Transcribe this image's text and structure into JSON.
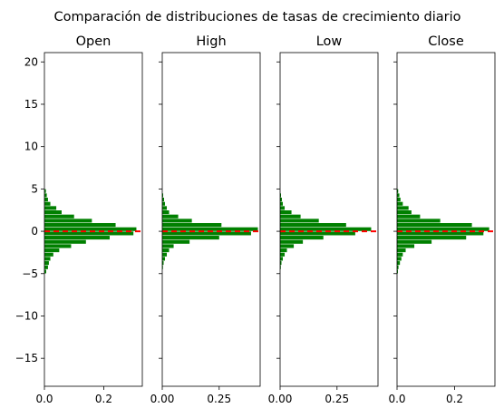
{
  "chart_data": {
    "type": "bar",
    "orientation": "horizontal-histogram",
    "suptitle": "Comparación de distribuciones de tasas de crecimiento diario",
    "ylim": [
      -18.3,
      21.1
    ],
    "y_ticks": [
      20,
      15,
      10,
      5,
      0,
      -5,
      -10,
      -15
    ],
    "y_tick_labels": [
      "20",
      "15",
      "10",
      "5",
      "0",
      "−5",
      "−10",
      "−15"
    ],
    "shared_y": true,
    "bar_color": "#008000",
    "reference_line": {
      "y": 0,
      "color": "#ff0000",
      "style": "dashed"
    },
    "panels": [
      {
        "title": "Open",
        "xlim": [
          0,
          0.33
        ],
        "x_ticks": [
          0.0,
          0.2
        ],
        "x_tick_labels": [
          "0.0",
          "0.2"
        ],
        "bins": [
          {
            "y": 4.75,
            "value": 0.005
          },
          {
            "y": 4.25,
            "value": 0.008
          },
          {
            "y": 3.75,
            "value": 0.012
          },
          {
            "y": 3.25,
            "value": 0.02
          },
          {
            "y": 2.75,
            "value": 0.04
          },
          {
            "y": 2.25,
            "value": 0.058
          },
          {
            "y": 1.75,
            "value": 0.1
          },
          {
            "y": 1.25,
            "value": 0.16
          },
          {
            "y": 0.75,
            "value": 0.24
          },
          {
            "y": 0.25,
            "value": 0.31
          },
          {
            "y": -0.25,
            "value": 0.3
          },
          {
            "y": -0.75,
            "value": 0.22
          },
          {
            "y": -1.25,
            "value": 0.14
          },
          {
            "y": -1.75,
            "value": 0.09
          },
          {
            "y": -2.25,
            "value": 0.05
          },
          {
            "y": -2.75,
            "value": 0.03
          },
          {
            "y": -3.25,
            "value": 0.02
          },
          {
            "y": -3.75,
            "value": 0.015
          },
          {
            "y": -4.25,
            "value": 0.012
          },
          {
            "y": -4.75,
            "value": 0.006
          }
        ]
      },
      {
        "title": "High",
        "xlim": [
          0,
          0.43
        ],
        "x_ticks": [
          0.0,
          0.25
        ],
        "x_tick_labels": [
          "0.00",
          "0.25"
        ],
        "bins": [
          {
            "y": 4.25,
            "value": 0.004
          },
          {
            "y": 3.75,
            "value": 0.008
          },
          {
            "y": 3.25,
            "value": 0.012
          },
          {
            "y": 2.75,
            "value": 0.02
          },
          {
            "y": 2.25,
            "value": 0.03
          },
          {
            "y": 1.75,
            "value": 0.07
          },
          {
            "y": 1.25,
            "value": 0.13
          },
          {
            "y": 0.75,
            "value": 0.26
          },
          {
            "y": 0.25,
            "value": 0.42
          },
          {
            "y": -0.25,
            "value": 0.39
          },
          {
            "y": -0.75,
            "value": 0.25
          },
          {
            "y": -1.25,
            "value": 0.12
          },
          {
            "y": -1.75,
            "value": 0.05
          },
          {
            "y": -2.25,
            "value": 0.03
          },
          {
            "y": -2.75,
            "value": 0.02
          },
          {
            "y": -3.25,
            "value": 0.012
          },
          {
            "y": -3.75,
            "value": 0.006
          },
          {
            "y": -4.25,
            "value": 0.003
          }
        ]
      },
      {
        "title": "Low",
        "xlim": [
          0,
          0.43
        ],
        "x_ticks": [
          0.0,
          0.25
        ],
        "x_tick_labels": [
          "0.00",
          "0.25"
        ],
        "bins": [
          {
            "y": 4.25,
            "value": 0.004
          },
          {
            "y": 3.75,
            "value": 0.008
          },
          {
            "y": 3.25,
            "value": 0.012
          },
          {
            "y": 2.75,
            "value": 0.02
          },
          {
            "y": 2.25,
            "value": 0.05
          },
          {
            "y": 1.75,
            "value": 0.09
          },
          {
            "y": 1.25,
            "value": 0.17
          },
          {
            "y": 0.75,
            "value": 0.29
          },
          {
            "y": 0.25,
            "value": 0.4
          },
          {
            "y": -0.25,
            "value": 0.33
          },
          {
            "y": -0.75,
            "value": 0.19
          },
          {
            "y": -1.25,
            "value": 0.1
          },
          {
            "y": -1.75,
            "value": 0.06
          },
          {
            "y": -2.25,
            "value": 0.03
          },
          {
            "y": -2.75,
            "value": 0.02
          },
          {
            "y": -3.25,
            "value": 0.012
          },
          {
            "y": -3.75,
            "value": 0.006
          },
          {
            "y": -4.25,
            "value": 0.003
          }
        ]
      },
      {
        "title": "Close",
        "xlim": [
          0,
          0.34
        ],
        "x_ticks": [
          0.0,
          0.2
        ],
        "x_tick_labels": [
          "0.0",
          "0.2"
        ],
        "bins": [
          {
            "y": 4.75,
            "value": 0.004
          },
          {
            "y": 4.25,
            "value": 0.008
          },
          {
            "y": 3.75,
            "value": 0.012
          },
          {
            "y": 3.25,
            "value": 0.02
          },
          {
            "y": 2.75,
            "value": 0.04
          },
          {
            "y": 2.25,
            "value": 0.05
          },
          {
            "y": 1.75,
            "value": 0.08
          },
          {
            "y": 1.25,
            "value": 0.15
          },
          {
            "y": 0.75,
            "value": 0.26
          },
          {
            "y": 0.25,
            "value": 0.32
          },
          {
            "y": -0.25,
            "value": 0.3
          },
          {
            "y": -0.75,
            "value": 0.24
          },
          {
            "y": -1.25,
            "value": 0.12
          },
          {
            "y": -1.75,
            "value": 0.06
          },
          {
            "y": -2.25,
            "value": 0.03
          },
          {
            "y": -2.75,
            "value": 0.02
          },
          {
            "y": -3.25,
            "value": 0.015
          },
          {
            "y": -3.75,
            "value": 0.01
          },
          {
            "y": -4.25,
            "value": 0.005
          },
          {
            "y": -4.75,
            "value": 0.003
          }
        ]
      }
    ]
  }
}
